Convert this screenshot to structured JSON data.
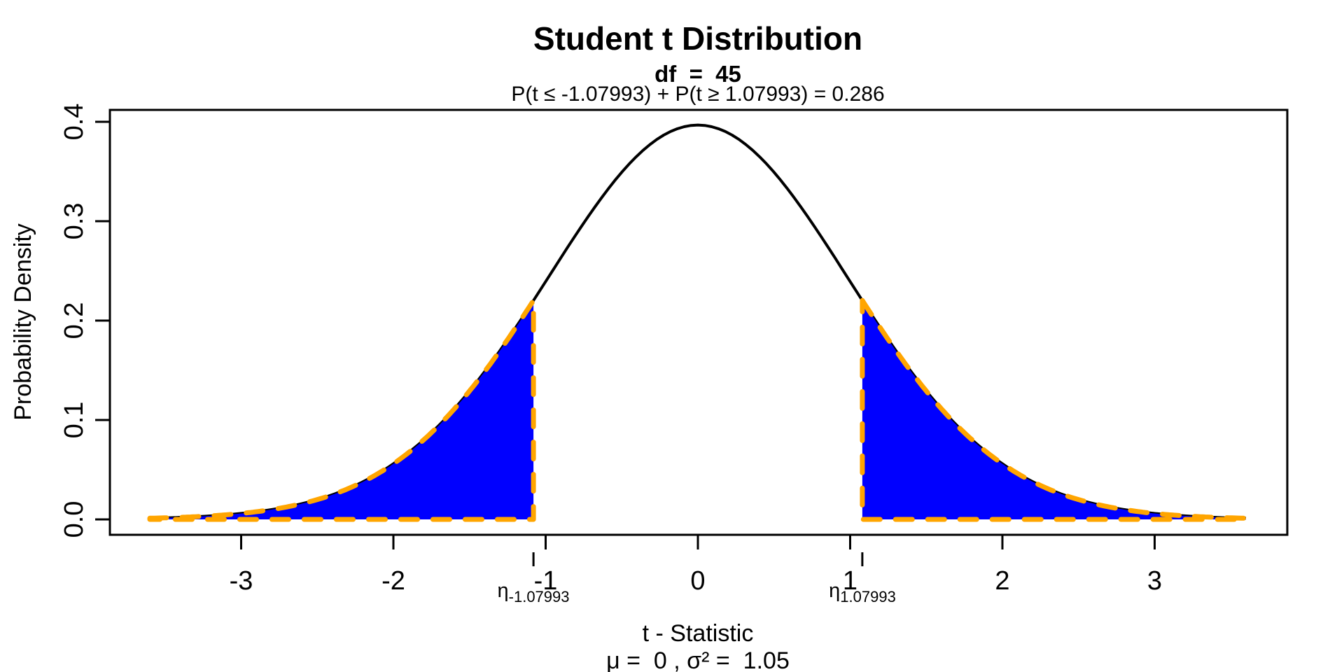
{
  "title": "Student t Distribution",
  "subtitle_df": "df  =  45",
  "subtitle_prob": "P(t ≤ -1.07993) + P(t ≥ 1.07993) = 0.286",
  "x_axis": {
    "label_line1": "t - Statistic",
    "label_line2": "μ =  0 , σ² =  1.05",
    "ticks": [
      "-3",
      "-2",
      "-1",
      "0",
      "1",
      "2",
      "3"
    ],
    "tick_values": [
      -3,
      -2,
      -1,
      0,
      1,
      2,
      3
    ]
  },
  "y_axis": {
    "label": "Probability Density",
    "ticks": [
      "0.0",
      "0.1",
      "0.2",
      "0.3",
      "0.4"
    ],
    "tick_values": [
      0,
      0.1,
      0.2,
      0.3,
      0.4
    ]
  },
  "eta": {
    "left": {
      "base": "η",
      "sub": "-1.07993"
    },
    "right": {
      "base": "η",
      "sub": "1.07993"
    }
  },
  "colors": {
    "curve": "#000000",
    "tail_fill": "#0000ff",
    "tail_dash": "#ffa500",
    "axis": "#000000"
  },
  "chart_data": {
    "type": "area",
    "distribution": "student_t",
    "df": 45,
    "mu": 0,
    "sigma_squared": 1.05,
    "critical_values": [
      -1.07993,
      1.07993
    ],
    "two_tail_probability": 0.286,
    "title": "Student t Distribution",
    "xlabel": "t - Statistic",
    "ylabel": "Probability Density",
    "curve_x_range": [
      -3.6,
      3.6
    ],
    "xlim": [
      -3.86,
      3.87
    ],
    "ylim": [
      -0.015,
      0.412
    ],
    "grid": false,
    "legend": "none",
    "peak_density": 0.3966,
    "curve_points": {
      "x": [
        -3.5,
        -3.0,
        -2.5,
        -2.0,
        -1.5,
        -1.0,
        -0.5,
        0,
        0.5,
        1.0,
        1.5,
        2.0,
        2.5,
        3.0,
        3.5
      ],
      "density": [
        0.0016,
        0.006,
        0.0195,
        0.055,
        0.129,
        0.241,
        0.351,
        0.3966,
        0.351,
        0.241,
        0.129,
        0.055,
        0.0195,
        0.006,
        0.0016
      ]
    },
    "shaded_regions": [
      {
        "name": "left-tail",
        "from": -3.6,
        "to": -1.07993
      },
      {
        "name": "right-tail",
        "from": 1.07993,
        "to": 3.6
      }
    ]
  }
}
